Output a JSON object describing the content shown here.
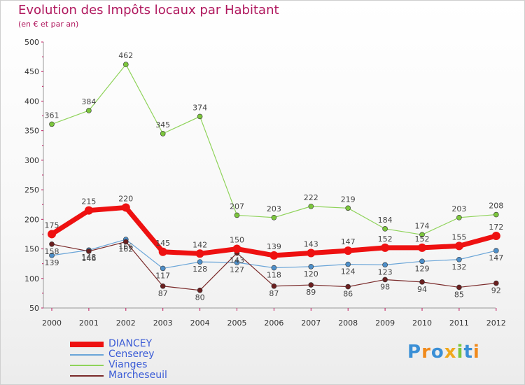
{
  "chart_data": {
    "type": "line",
    "title": "Evolution des Impôts locaux par Habitant",
    "subtitle": "(en € et par an)",
    "xlabel": "",
    "ylabel": "",
    "ylim": [
      50,
      500
    ],
    "yticks": [
      50,
      100,
      150,
      200,
      250,
      300,
      350,
      400,
      450,
      500
    ],
    "categories": [
      "2000",
      "2001",
      "2002",
      "2003",
      "2004",
      "2005",
      "2006",
      "2007",
      "2008",
      "2009",
      "2010",
      "2011",
      "2012"
    ],
    "series": [
      {
        "name": "Vianges",
        "color": "#8fd35a",
        "dot": "#7cc63d",
        "width": 1.2,
        "radius": 3.5,
        "values": [
          361,
          384,
          462,
          345,
          374,
          207,
          203,
          222,
          219,
          184,
          174,
          203,
          208
        ]
      },
      {
        "name": "Censerey",
        "color": "#6aa5d8",
        "dot": "#4e8fc9",
        "width": 1.2,
        "radius": 3.5,
        "values": [
          139,
          148,
          166,
          117,
          128,
          127,
          118,
          120,
          124,
          123,
          129,
          132,
          147
        ]
      },
      {
        "name": "Marcheseuil",
        "color": "#7a2a2a",
        "dot": "#6a1f1f",
        "width": 1.2,
        "radius": 3.5,
        "values": [
          158,
          146,
          162,
          87,
          80,
          143,
          87,
          89,
          86,
          98,
          94,
          85,
          92
        ]
      },
      {
        "name": "DIANCEY",
        "color": "#ee1111",
        "dot": "#ee1111",
        "width": 7,
        "radius": 6,
        "values": [
          175,
          215,
          220,
          145,
          142,
          150,
          139,
          143,
          147,
          152,
          152,
          155,
          172
        ]
      }
    ],
    "legend": [
      {
        "name": "DIANCEY",
        "color": "#ee1111",
        "thickness": 8
      },
      {
        "name": "Censerey",
        "color": "#6aa5d8",
        "thickness": 2
      },
      {
        "name": "Vianges",
        "color": "#8fd35a",
        "thickness": 2
      },
      {
        "name": "Marcheseuil",
        "color": "#7a2a2a",
        "thickness": 2
      }
    ]
  },
  "brand": {
    "letters": [
      "P",
      "r",
      "o",
      "x",
      "i",
      "t",
      "i"
    ],
    "colors": [
      "#3a8fd6",
      "#f08a1c",
      "#3a8fd6",
      "#f0a81c",
      "#7cc63d",
      "#3a8fd6",
      "#f08a1c"
    ]
  }
}
